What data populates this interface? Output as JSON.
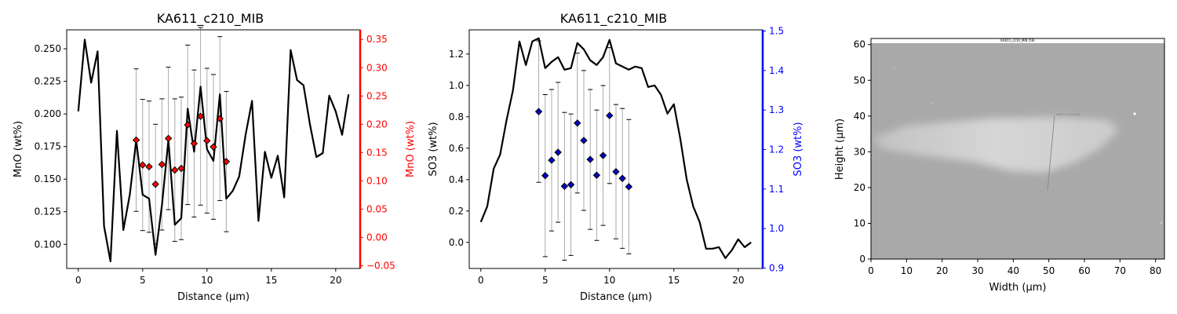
{
  "chart_data": [
    {
      "type": "line",
      "title": "KA611_c210_MIB",
      "xlabel": "Distance (µm)",
      "ylabel": "MnO (wt%)",
      "xlim": [
        -0.9,
        21.9
      ],
      "ylim": [
        0.0815,
        0.2645
      ],
      "xticks": [
        0,
        5,
        10,
        15,
        20
      ],
      "yticks": [
        0.1,
        0.125,
        0.15,
        0.175,
        0.2,
        0.225,
        0.25
      ],
      "ytick_labels": [
        "0.100",
        "0.125",
        "0.150",
        "0.175",
        "0.200",
        "0.225",
        "0.250"
      ],
      "line": {
        "color": "#000000",
        "x": [
          0,
          0.5,
          1,
          1.5,
          2,
          2.5,
          3,
          3.5,
          4,
          4.5,
          5,
          5.5,
          6,
          6.5,
          7,
          7.5,
          8,
          8.5,
          9,
          9.5,
          10,
          10.5,
          11,
          11.5,
          12,
          12.5,
          13,
          13.5,
          14,
          14.5,
          15,
          15.5,
          16,
          16.5,
          17,
          17.5,
          18,
          18.5,
          19,
          19.5,
          20,
          20.5,
          21
        ],
        "y": [
          0.202,
          0.257,
          0.224,
          0.248,
          0.114,
          0.087,
          0.187,
          0.111,
          0.138,
          0.18,
          0.138,
          0.135,
          0.092,
          0.13,
          0.18,
          0.115,
          0.12,
          0.204,
          0.171,
          0.221,
          0.173,
          0.164,
          0.215,
          0.135,
          0.141,
          0.152,
          0.184,
          0.21,
          0.118,
          0.171,
          0.151,
          0.168,
          0.136,
          0.249,
          0.226,
          0.222,
          0.192,
          0.167,
          0.17,
          0.214,
          0.202,
          0.184,
          0.215
        ]
      },
      "secondary_axis": {
        "label": "MnO (wt%)",
        "color": "#ff0000",
        "ylim": [
          -0.055,
          0.367
        ],
        "ticks": [
          -0.05,
          0,
          0.05,
          0.1,
          0.15,
          0.2,
          0.25,
          0.3,
          0.35
        ],
        "tick_labels": [
          "−0.05",
          "0.00",
          "0.05",
          "0.10",
          "0.15",
          "0.20",
          "0.25",
          "0.30",
          "0.35"
        ],
        "points": {
          "marker_color": "#ff0000",
          "x": [
            4.5,
            5,
            5.5,
            6,
            6.5,
            7,
            7.5,
            8,
            8.5,
            9,
            9.5,
            10,
            10.5,
            11,
            11.5
          ],
          "y": [
            0.172,
            0.128,
            0.125,
            0.094,
            0.129,
            0.175,
            0.119,
            0.122,
            0.199,
            0.166,
            0.214,
            0.171,
            0.16,
            0.21,
            0.134
          ],
          "err": [
            0.126,
            0.116,
            0.116,
            0.106,
            0.116,
            0.126,
            0.126,
            0.126,
            0.141,
            0.13,
            0.157,
            0.128,
            0.128,
            0.145,
            0.124
          ]
        }
      }
    },
    {
      "type": "line",
      "title": "KA611_c210_MIB",
      "xlabel": "Distance (µm)",
      "ylabel": "SO3 (wt%)",
      "xlim": [
        -0.9,
        21.9
      ],
      "ylim": [
        -0.166,
        1.354
      ],
      "xticks": [
        0,
        5,
        10,
        15,
        20
      ],
      "yticks": [
        0,
        0.2,
        0.4,
        0.6,
        0.8,
        1.0,
        1.2
      ],
      "ytick_labels": [
        "0.0",
        "0.2",
        "0.4",
        "0.6",
        "0.8",
        "1.0",
        "1.2"
      ],
      "line": {
        "color": "#000000",
        "x": [
          0,
          0.5,
          1,
          1.5,
          2,
          2.5,
          3,
          3.5,
          4,
          4.5,
          5,
          5.5,
          6,
          6.5,
          7,
          7.5,
          8,
          8.5,
          9,
          9.5,
          10,
          10.5,
          11,
          11.5,
          12,
          12.5,
          13,
          13.5,
          14,
          14.5,
          15,
          15.5,
          16,
          16.5,
          17,
          17.5,
          18,
          18.5,
          19,
          19.5,
          20,
          20.5,
          21
        ],
        "y": [
          0.13,
          0.23,
          0.47,
          0.56,
          0.78,
          0.97,
          1.28,
          1.13,
          1.28,
          1.3,
          1.11,
          1.15,
          1.18,
          1.1,
          1.11,
          1.27,
          1.23,
          1.16,
          1.13,
          1.18,
          1.29,
          1.14,
          1.12,
          1.1,
          1.12,
          1.11,
          0.99,
          1.0,
          0.94,
          0.82,
          0.88,
          0.66,
          0.4,
          0.23,
          0.13,
          -0.04,
          -0.04,
          -0.03,
          -0.1,
          -0.05,
          0.02,
          -0.03,
          0.0
        ]
      },
      "secondary_axis": {
        "label": "SO3 (wt%)",
        "color": "#0000ff",
        "ylim": [
          0.899,
          1.503
        ],
        "ticks": [
          0.9,
          1.0,
          1.1,
          1.2,
          1.3,
          1.4,
          1.5
        ],
        "tick_labels": [
          "0.9",
          "1.0",
          "1.1",
          "1.2",
          "1.3",
          "1.4",
          "1.5"
        ],
        "points": {
          "marker_color": "#0000cc",
          "x": [
            4.5,
            5,
            5.5,
            6,
            6.5,
            7,
            7.5,
            8,
            8.5,
            9,
            9.5,
            10,
            10.5,
            11,
            11.5
          ],
          "y": [
            1.296,
            1.134,
            1.173,
            1.193,
            1.107,
            1.111,
            1.267,
            1.223,
            1.175,
            1.135,
            1.185,
            1.286,
            1.144,
            1.127,
            1.106
          ],
          "err": [
            0.179,
            0.205,
            0.179,
            0.177,
            0.187,
            0.179,
            0.177,
            0.177,
            0.177,
            0.165,
            0.177,
            0.172,
            0.17,
            0.177,
            0.17
          ]
        }
      }
    },
    {
      "type": "image",
      "xlabel": "Width (µm)",
      "ylabel": "Height (µm)",
      "xlim": [
        0,
        82.5
      ],
      "ylim": [
        0,
        61.7
      ],
      "xticks": [
        0,
        10,
        20,
        30,
        40,
        50,
        60,
        70,
        80
      ],
      "yticks": [
        0,
        10,
        20,
        30,
        40,
        50,
        60
      ],
      "image_caption": "KA611_c210_MIB (58)",
      "image_annotation": "KA611_c210_MIB"
    }
  ]
}
